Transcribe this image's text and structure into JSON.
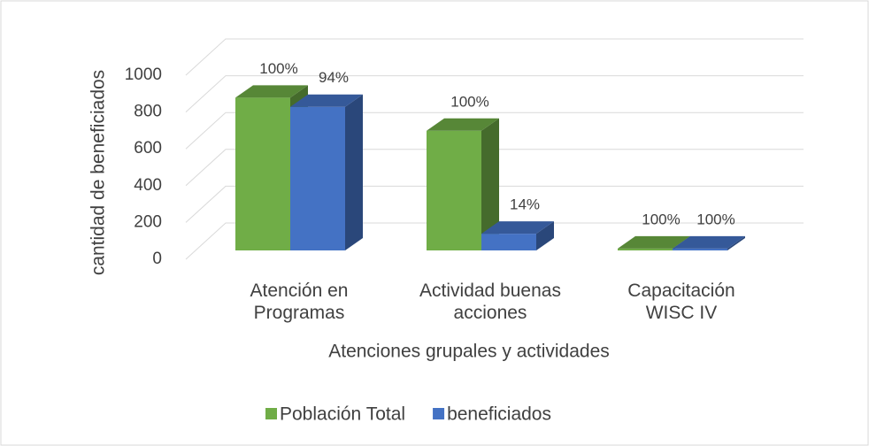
{
  "chart_data": {
    "type": "bar3d",
    "categories": [
      "Atención en Programas",
      "Actividad buenas acciones",
      "Capacitación WISC IV"
    ],
    "series": [
      {
        "name": "Población Total",
        "color": "#70ad47",
        "values": [
          830,
          650,
          10
        ],
        "value_labels": [
          "100%",
          "100%",
          "100%"
        ]
      },
      {
        "name": "beneficiados",
        "color": "#4472c4",
        "values": [
          780,
          91,
          10
        ],
        "value_labels": [
          "94%",
          "14%",
          "100%"
        ]
      }
    ],
    "ylim": [
      0,
      1000
    ],
    "yticks": [
      0,
      200,
      400,
      600,
      800,
      1000
    ],
    "grid": true,
    "ylabel": "cantidad de beneficiados",
    "xlabel": "Atenciones grupales y actividades",
    "legend": "bottom"
  }
}
